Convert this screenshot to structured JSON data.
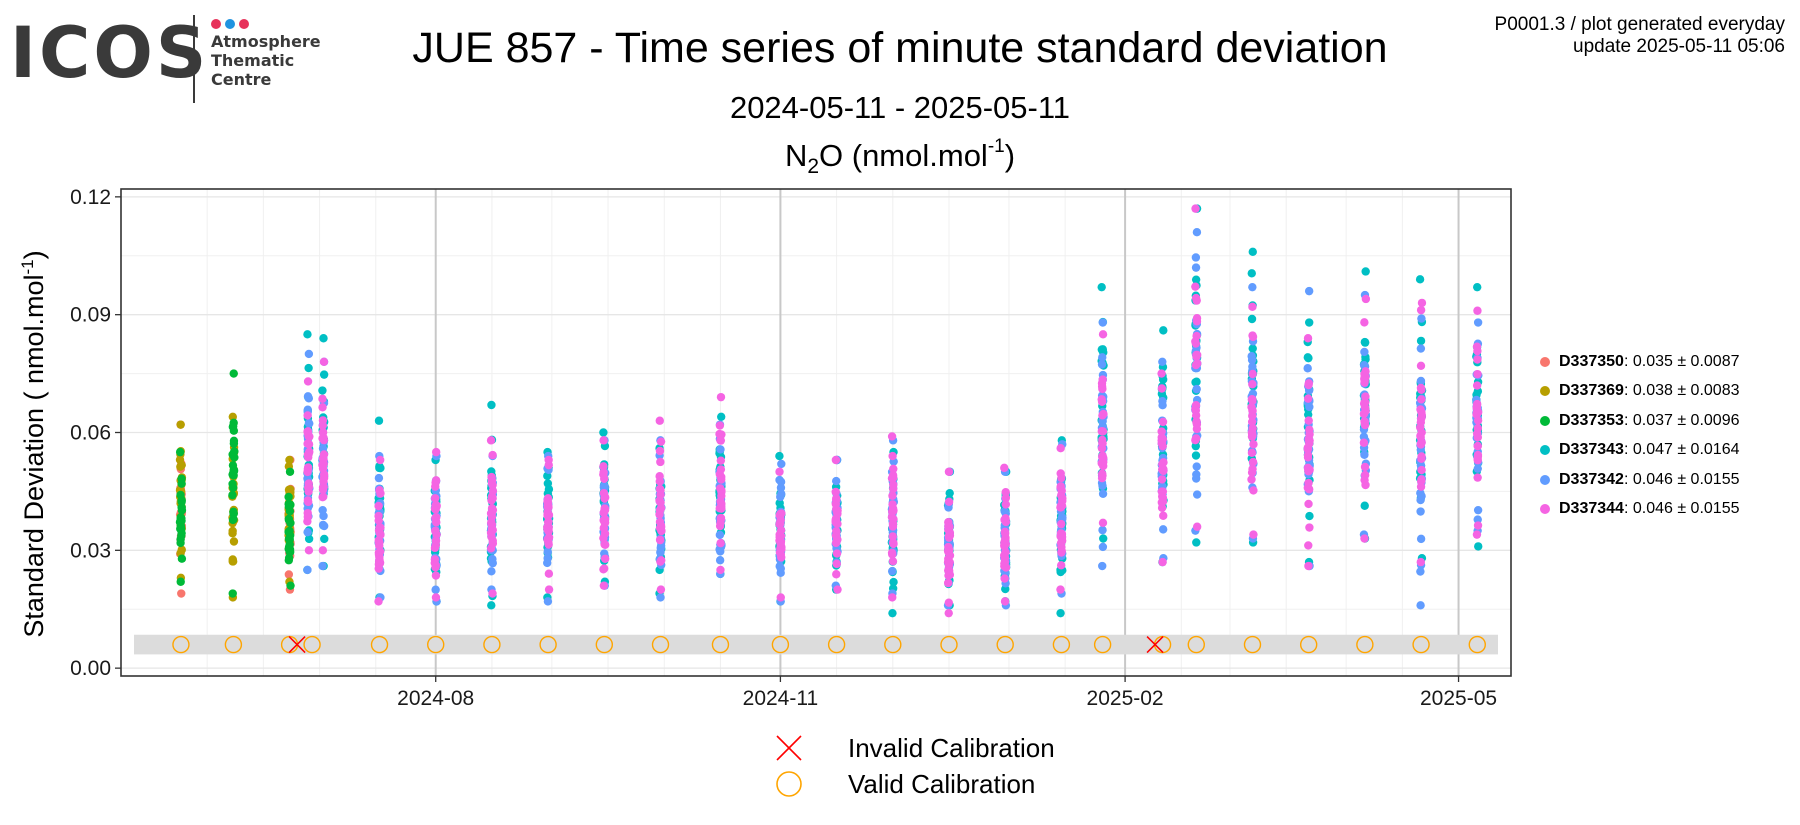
{
  "logo": {
    "mark": "ICOS",
    "lines": [
      "Atmosphere",
      "Thematic",
      "Centre"
    ],
    "dot_colors": [
      "#e7325a",
      "#1f93e0",
      "#e7325a"
    ]
  },
  "header": {
    "title": "JUE 857 - Time series of minute standard deviation",
    "subtitle": "2024-05-11 - 2025-05-11",
    "species_main": "N",
    "species_sub": "2",
    "species_rest": "O (nmol.mol",
    "species_sup": "-1",
    "species_end": ")"
  },
  "info": {
    "line1": "P0001.3 / plot generated everyday",
    "line2": "update  2025-05-11 05:06"
  },
  "chart_data": {
    "type": "scatter",
    "ylabel_main": "Standard Deviation ( nmol.mol",
    "ylabel_sup": "-1",
    "ylabel_end": ")",
    "xlim": [
      "2024-05-09",
      "2025-05-15"
    ],
    "ylim": [
      -0.002,
      0.122
    ],
    "yticks": [
      0.0,
      0.03,
      0.06,
      0.09,
      0.12
    ],
    "ytick_labels": [
      "0.00",
      "0.03",
      "0.06",
      "0.09",
      "0.12"
    ],
    "xticks": [
      "2024-08-01",
      "2024-11-01",
      "2025-02-01",
      "2025-05-01"
    ],
    "xtick_labels": [
      "2024-08",
      "2024-11",
      "2025-02",
      "2025-05"
    ],
    "grid": true,
    "calibration_band": [
      0.0035,
      0.0085
    ],
    "series": [
      {
        "name": "D337350",
        "stats": ": 0.035 ± 0.0087",
        "color": "#F8766D",
        "columns": [
          {
            "x": "2024-05-25",
            "min": 0.019,
            "max": 0.062
          },
          {
            "x": "2024-06-23",
            "min": 0.02,
            "max": 0.053
          }
        ]
      },
      {
        "name": "D337369",
        "stats": ": 0.038 ± 0.0083",
        "color": "#B79F00",
        "columns": [
          {
            "x": "2024-05-25",
            "min": 0.023,
            "max": 0.062
          },
          {
            "x": "2024-06-08",
            "min": 0.018,
            "max": 0.064
          },
          {
            "x": "2024-06-23",
            "min": 0.022,
            "max": 0.053
          }
        ]
      },
      {
        "name": "D337353",
        "stats": ": 0.037 ± 0.0096",
        "color": "#00BA38",
        "columns": [
          {
            "x": "2024-05-25",
            "min": 0.022,
            "max": 0.055
          },
          {
            "x": "2024-06-08",
            "min": 0.019,
            "max": 0.075
          },
          {
            "x": "2024-06-23",
            "min": 0.021,
            "max": 0.05
          }
        ]
      },
      {
        "name": "D337343",
        "stats": ": 0.047 ± 0.0164",
        "color": "#00BFC4",
        "columns": [
          {
            "x": "2024-06-28",
            "min": 0.025,
            "max": 0.085
          },
          {
            "x": "2024-07-02",
            "min": 0.026,
            "max": 0.084
          },
          {
            "x": "2024-07-17",
            "min": 0.018,
            "max": 0.063
          },
          {
            "x": "2024-08-01",
            "min": 0.017,
            "max": 0.053
          },
          {
            "x": "2024-08-16",
            "min": 0.016,
            "max": 0.067
          },
          {
            "x": "2024-08-31",
            "min": 0.018,
            "max": 0.055
          },
          {
            "x": "2024-09-15",
            "min": 0.022,
            "max": 0.06
          },
          {
            "x": "2024-09-30",
            "min": 0.019,
            "max": 0.056
          },
          {
            "x": "2024-10-16",
            "min": 0.024,
            "max": 0.064
          },
          {
            "x": "2024-11-01",
            "min": 0.017,
            "max": 0.054
          },
          {
            "x": "2024-11-16",
            "min": 0.02,
            "max": 0.053
          },
          {
            "x": "2024-12-01",
            "min": 0.014,
            "max": 0.055
          },
          {
            "x": "2024-12-16",
            "min": 0.016,
            "max": 0.05
          },
          {
            "x": "2024-12-31",
            "min": 0.017,
            "max": 0.05
          },
          {
            "x": "2025-01-15",
            "min": 0.014,
            "max": 0.058
          },
          {
            "x": "2025-01-26",
            "min": 0.033,
            "max": 0.097
          },
          {
            "x": "2025-02-11",
            "min": 0.027,
            "max": 0.086
          },
          {
            "x": "2025-02-20",
            "min": 0.032,
            "max": 0.117
          },
          {
            "x": "2025-03-07",
            "min": 0.032,
            "max": 0.106
          },
          {
            "x": "2025-03-22",
            "min": 0.027,
            "max": 0.088
          },
          {
            "x": "2025-04-06",
            "min": 0.033,
            "max": 0.101
          },
          {
            "x": "2025-04-21",
            "min": 0.028,
            "max": 0.099
          },
          {
            "x": "2025-05-06",
            "min": 0.031,
            "max": 0.097
          }
        ]
      },
      {
        "name": "D337342",
        "stats": ": 0.046 ± 0.0155",
        "color": "#619CFF",
        "columns": [
          {
            "x": "2024-06-28",
            "min": 0.025,
            "max": 0.08
          },
          {
            "x": "2024-07-02",
            "min": 0.026,
            "max": 0.078
          },
          {
            "x": "2024-07-17",
            "min": 0.018,
            "max": 0.054
          },
          {
            "x": "2024-08-01",
            "min": 0.017,
            "max": 0.054
          },
          {
            "x": "2024-08-16",
            "min": 0.02,
            "max": 0.054
          },
          {
            "x": "2024-08-31",
            "min": 0.017,
            "max": 0.054
          },
          {
            "x": "2024-09-15",
            "min": 0.021,
            "max": 0.058
          },
          {
            "x": "2024-09-30",
            "min": 0.018,
            "max": 0.058
          },
          {
            "x": "2024-10-16",
            "min": 0.024,
            "max": 0.062
          },
          {
            "x": "2024-11-01",
            "min": 0.017,
            "max": 0.052
          },
          {
            "x": "2024-11-16",
            "min": 0.021,
            "max": 0.053
          },
          {
            "x": "2024-12-01",
            "min": 0.019,
            "max": 0.058
          },
          {
            "x": "2024-12-16",
            "min": 0.016,
            "max": 0.05
          },
          {
            "x": "2024-12-31",
            "min": 0.016,
            "max": 0.05
          },
          {
            "x": "2025-01-15",
            "min": 0.019,
            "max": 0.057
          },
          {
            "x": "2025-01-26",
            "min": 0.026,
            "max": 0.088
          },
          {
            "x": "2025-02-11",
            "min": 0.028,
            "max": 0.078
          },
          {
            "x": "2025-02-20",
            "min": 0.035,
            "max": 0.111
          },
          {
            "x": "2025-03-07",
            "min": 0.033,
            "max": 0.097
          },
          {
            "x": "2025-03-22",
            "min": 0.026,
            "max": 0.096
          },
          {
            "x": "2025-04-06",
            "min": 0.034,
            "max": 0.095
          },
          {
            "x": "2025-04-21",
            "min": 0.016,
            "max": 0.089
          },
          {
            "x": "2025-05-06",
            "min": 0.035,
            "max": 0.088
          }
        ]
      },
      {
        "name": "D337344",
        "stats": ": 0.046 ± 0.0155",
        "color": "#F564E3",
        "columns": [
          {
            "x": "2024-06-28",
            "min": 0.03,
            "max": 0.073
          },
          {
            "x": "2024-07-02",
            "min": 0.03,
            "max": 0.078
          },
          {
            "x": "2024-07-17",
            "min": 0.017,
            "max": 0.053
          },
          {
            "x": "2024-08-01",
            "min": 0.018,
            "max": 0.055
          },
          {
            "x": "2024-08-16",
            "min": 0.019,
            "max": 0.058
          },
          {
            "x": "2024-08-31",
            "min": 0.02,
            "max": 0.053
          },
          {
            "x": "2024-09-15",
            "min": 0.021,
            "max": 0.058
          },
          {
            "x": "2024-09-30",
            "min": 0.02,
            "max": 0.063
          },
          {
            "x": "2024-10-16",
            "min": 0.025,
            "max": 0.069
          },
          {
            "x": "2024-11-01",
            "min": 0.018,
            "max": 0.05
          },
          {
            "x": "2024-11-16",
            "min": 0.02,
            "max": 0.053
          },
          {
            "x": "2024-12-01",
            "min": 0.018,
            "max": 0.059
          },
          {
            "x": "2024-12-16",
            "min": 0.014,
            "max": 0.05
          },
          {
            "x": "2024-12-31",
            "min": 0.017,
            "max": 0.051
          },
          {
            "x": "2025-01-15",
            "min": 0.02,
            "max": 0.056
          },
          {
            "x": "2025-01-26",
            "min": 0.037,
            "max": 0.085
          },
          {
            "x": "2025-02-11",
            "min": 0.027,
            "max": 0.075
          },
          {
            "x": "2025-02-20",
            "min": 0.036,
            "max": 0.117
          },
          {
            "x": "2025-03-07",
            "min": 0.034,
            "max": 0.092
          },
          {
            "x": "2025-03-22",
            "min": 0.026,
            "max": 0.084
          },
          {
            "x": "2025-04-06",
            "min": 0.033,
            "max": 0.094
          },
          {
            "x": "2025-04-21",
            "min": 0.027,
            "max": 0.093
          },
          {
            "x": "2025-05-06",
            "min": 0.034,
            "max": 0.091
          }
        ]
      }
    ],
    "calibrations": {
      "y": 0.006,
      "valid_label": "Valid Calibration",
      "invalid_label": "Invalid Calibration",
      "valid_color": "#FFA500",
      "invalid_color": "#FF0000",
      "valid": [
        "2024-05-25",
        "2024-06-08",
        "2024-06-23",
        "2024-06-29",
        "2024-07-17",
        "2024-08-01",
        "2024-08-16",
        "2024-08-31",
        "2024-09-15",
        "2024-09-30",
        "2024-10-16",
        "2024-11-01",
        "2024-11-16",
        "2024-12-01",
        "2024-12-16",
        "2024-12-31",
        "2025-01-15",
        "2025-01-26",
        "2025-02-11",
        "2025-02-20",
        "2025-03-07",
        "2025-03-22",
        "2025-04-06",
        "2025-04-21",
        "2025-05-06"
      ],
      "invalid": [
        "2024-06-25",
        "2025-02-09"
      ]
    }
  }
}
